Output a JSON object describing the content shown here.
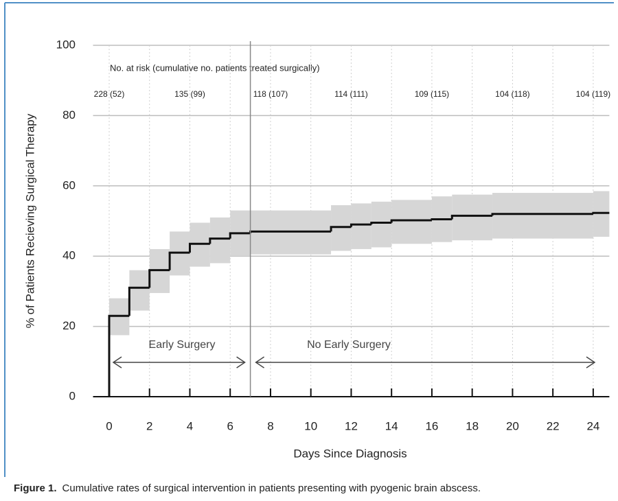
{
  "chart_data": {
    "type": "step",
    "x_label": "Days Since Diagnosis",
    "y_label": "% of Patients Recieving Surgical Therapy",
    "caption_label": "Figure 1.",
    "caption": "Cumulative rates of surgical intervention in patients presenting with pyogenic brain abscess.",
    "xlim": [
      -0.8,
      24.8
    ],
    "xticks": [
      0,
      2,
      4,
      6,
      8,
      10,
      12,
      14,
      16,
      18,
      20,
      22,
      24
    ],
    "ylim": [
      0,
      100
    ],
    "yticks": [
      0,
      20,
      40,
      60,
      80,
      100
    ],
    "grid": true,
    "divider_x": 7,
    "annotations": [
      "Early Surgery",
      "No Early Surgery"
    ],
    "at_risk": {
      "title": "No. at risk (cumulative no. patients treated surgically)",
      "x": [
        0,
        4,
        8,
        12,
        16,
        20,
        24
      ],
      "labels": [
        "228 (52)",
        "135 (99)",
        "118 (107)",
        "114 (111)",
        "109 (115)",
        "104 (118)",
        "104 (119)"
      ]
    },
    "series": [
      {
        "color": "#111111",
        "band_color": "#d6d6d6",
        "x": [
          0,
          1,
          2,
          3,
          4,
          5,
          6,
          7,
          11,
          12,
          13,
          14,
          16,
          17,
          19,
          24
        ],
        "values": [
          23,
          31,
          36,
          41,
          43.5,
          45,
          46.5,
          47,
          48.3,
          49,
          49.5,
          50.2,
          50.5,
          51.5,
          52,
          52.3
        ],
        "lower": [
          17.5,
          24.5,
          29.5,
          34.5,
          37,
          38,
          40,
          40.5,
          41.5,
          42,
          42.5,
          43.5,
          44,
          44.5,
          45,
          45.5
        ],
        "upper": [
          28,
          36,
          42,
          47,
          49.5,
          51,
          53,
          53,
          54.5,
          55,
          55.5,
          56,
          57,
          57.5,
          58,
          58.5
        ]
      }
    ]
  }
}
